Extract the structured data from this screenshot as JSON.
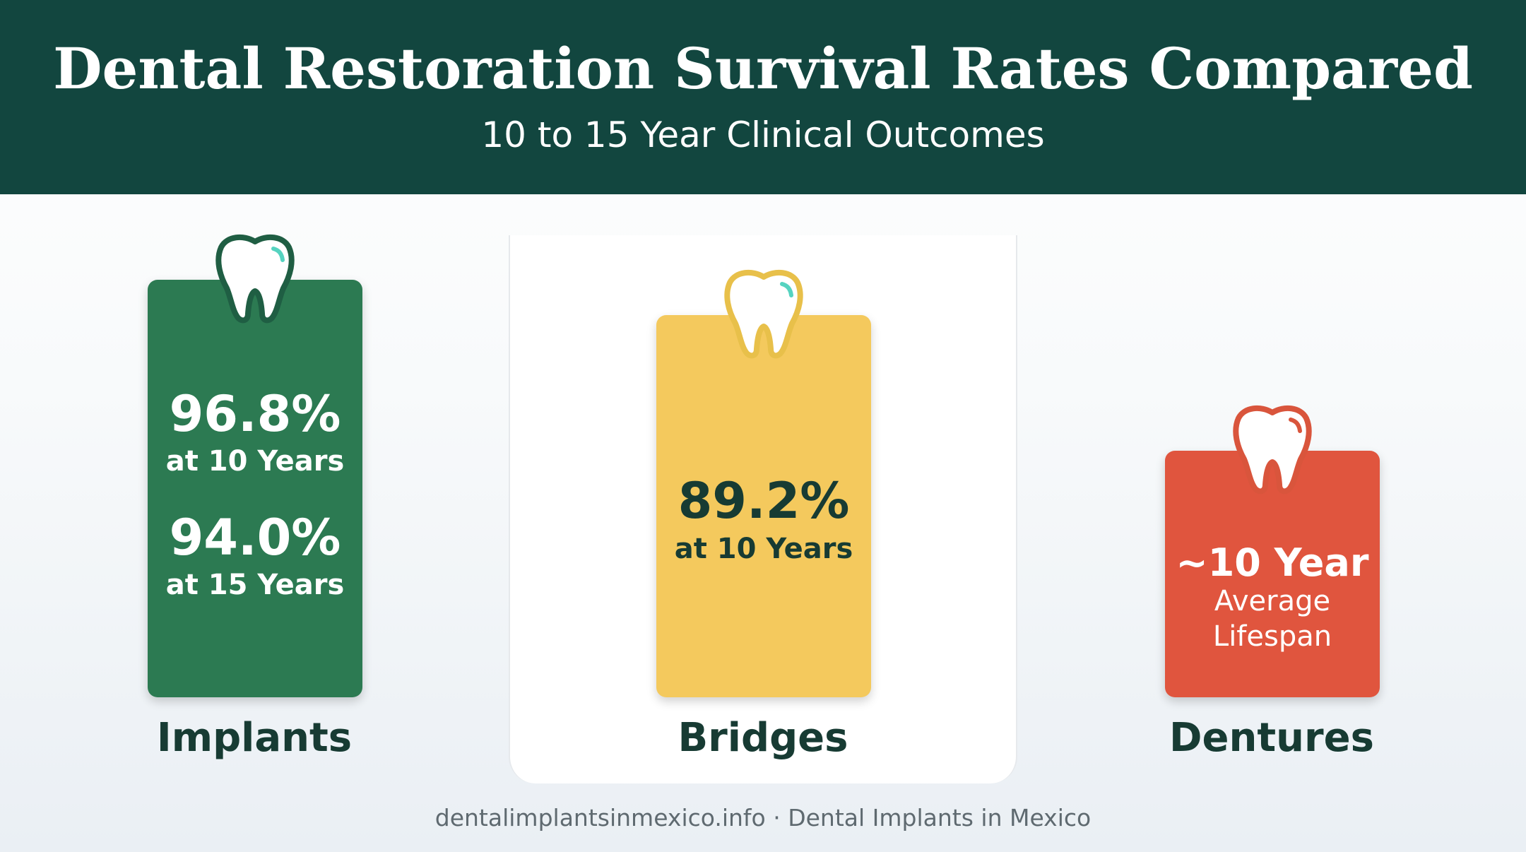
{
  "header": {
    "title": "Dental Restoration Survival Rates Compared",
    "subtitle": "10 to 15 Year Clinical Outcomes"
  },
  "chart_data": {
    "type": "bar",
    "title": "Dental Restoration Survival Rates Compared",
    "subtitle": "10 to 15 Year Clinical Outcomes",
    "categories": [
      "Implants",
      "Bridges",
      "Dentures"
    ],
    "series": [
      {
        "values": [
          96.8,
          89.2,
          null
        ]
      }
    ],
    "colors": [
      "#2c7a52",
      "#f4c95d",
      "#e0553e"
    ],
    "annotations": {
      "implants": [
        {
          "value": "96.8%",
          "label": "at 10 Years"
        },
        {
          "value": "94.0%",
          "label": "at 15 Years"
        }
      ],
      "bridges": [
        {
          "value": "89.2%",
          "label": "at 10 Years"
        }
      ],
      "dentures": [
        {
          "value": "~10 Year",
          "label_line1": "Average",
          "label_line2": "Lifespan"
        }
      ]
    },
    "icon": "tooth-icon"
  },
  "footer": {
    "text": "dentalimplantsinmexico.info · Dental Implants in Mexico"
  }
}
